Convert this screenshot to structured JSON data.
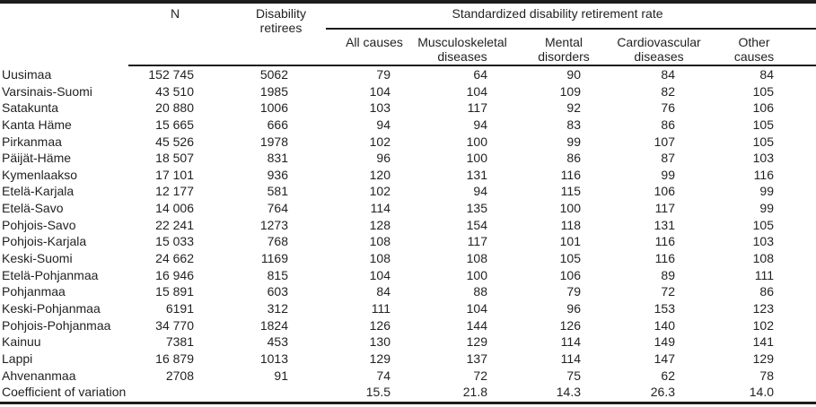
{
  "colors": {
    "background": "#ffffff",
    "text": "#231f20",
    "rule": "#1c1c1c"
  },
  "table": {
    "header": {
      "region": "",
      "n": "N",
      "retirees_line1": "Disability",
      "retirees_line2": "retirees",
      "group": "Standardized disability retirement rate",
      "sub": [
        {
          "l1": "All causes",
          "l2": ""
        },
        {
          "l1": "Musculoskeletal",
          "l2": "diseases"
        },
        {
          "l1": "Mental",
          "l2": "disorders"
        },
        {
          "l1": "Cardiovascular",
          "l2": "diseases"
        },
        {
          "l1": "Other",
          "l2": "causes"
        }
      ]
    },
    "rows": [
      {
        "region": "Uusimaa",
        "n": "152 745",
        "retirees": "5062",
        "rates": [
          "79",
          "64",
          "90",
          "84",
          "84"
        ]
      },
      {
        "region": "Varsinais-Suomi",
        "n": "43 510",
        "retirees": "1985",
        "rates": [
          "104",
          "104",
          "109",
          "82",
          "105"
        ]
      },
      {
        "region": "Satakunta",
        "n": "20 880",
        "retirees": "1006",
        "rates": [
          "103",
          "117",
          "92",
          "76",
          "106"
        ]
      },
      {
        "region": "Kanta Häme",
        "n": "15 665",
        "retirees": "666",
        "rates": [
          "94",
          "94",
          "83",
          "86",
          "105"
        ]
      },
      {
        "region": "Pirkanmaa",
        "n": "45 526",
        "retirees": "1978",
        "rates": [
          "102",
          "100",
          "99",
          "107",
          "105"
        ]
      },
      {
        "region": "Päijät-Häme",
        "n": "18 507",
        "retirees": "831",
        "rates": [
          "96",
          "100",
          "86",
          "87",
          "103"
        ]
      },
      {
        "region": "Kymenlaakso",
        "n": "17 101",
        "retirees": "936",
        "rates": [
          "120",
          "131",
          "116",
          "99",
          "116"
        ]
      },
      {
        "region": "Etelä-Karjala",
        "n": "12 177",
        "retirees": "581",
        "rates": [
          "102",
          "94",
          "115",
          "106",
          "99"
        ]
      },
      {
        "region": "Etelä-Savo",
        "n": "14 006",
        "retirees": "764",
        "rates": [
          "114",
          "135",
          "100",
          "117",
          "99"
        ]
      },
      {
        "region": "Pohjois-Savo",
        "n": "22 241",
        "retirees": "1273",
        "rates": [
          "128",
          "154",
          "118",
          "131",
          "105"
        ]
      },
      {
        "region": "Pohjois-Karjala",
        "n": "15 033",
        "retirees": "768",
        "rates": [
          "108",
          "117",
          "101",
          "116",
          "103"
        ]
      },
      {
        "region": "Keski-Suomi",
        "n": "24 662",
        "retirees": "1169",
        "rates": [
          "108",
          "108",
          "105",
          "116",
          "108"
        ]
      },
      {
        "region": "Etelä-Pohjanmaa",
        "n": "16 946",
        "retirees": "815",
        "rates": [
          "104",
          "100",
          "106",
          "89",
          "111"
        ]
      },
      {
        "region": "Pohjanmaa",
        "n": "15 891",
        "retirees": "603",
        "rates": [
          "84",
          "88",
          "79",
          "72",
          "86"
        ]
      },
      {
        "region": "Keski-Pohjanmaa",
        "n": "6191",
        "retirees": "312",
        "rates": [
          "111",
          "104",
          "96",
          "153",
          "123"
        ]
      },
      {
        "region": "Pohjois-Pohjanmaa",
        "n": "34 770",
        "retirees": "1824",
        "rates": [
          "126",
          "144",
          "126",
          "140",
          "102"
        ]
      },
      {
        "region": "Kainuu",
        "n": "7381",
        "retirees": "453",
        "rates": [
          "130",
          "129",
          "114",
          "149",
          "141"
        ]
      },
      {
        "region": "Lappi",
        "n": "16 879",
        "retirees": "1013",
        "rates": [
          "129",
          "137",
          "114",
          "147",
          "129"
        ]
      },
      {
        "region": "Ahvenanmaa",
        "n": "2708",
        "retirees": "91",
        "rates": [
          "74",
          "72",
          "75",
          "62",
          "78"
        ]
      },
      {
        "region": "Coefficient of variation",
        "n": "",
        "retirees": "",
        "rates": [
          "15.5",
          "21.8",
          "14.3",
          "26.3",
          "14.0"
        ]
      }
    ]
  }
}
